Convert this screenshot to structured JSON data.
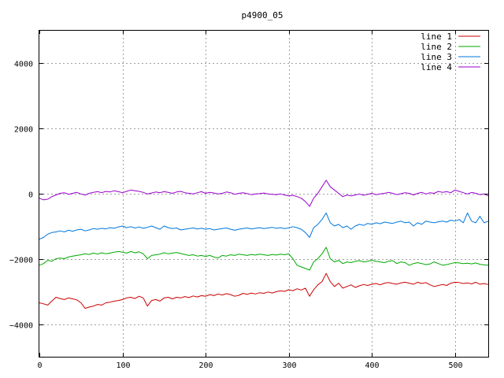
{
  "chart_data": {
    "type": "line",
    "title": "p4900_05",
    "xlabel": "",
    "ylabel": "",
    "xlim": [
      0,
      540
    ],
    "ylim": [
      -5000,
      5000
    ],
    "x_ticks": [
      0,
      100,
      200,
      300,
      400,
      500
    ],
    "y_ticks": [
      -4000,
      -2000,
      0,
      2000,
      4000
    ],
    "grid": true,
    "legend_position": "top-right",
    "series": [
      {
        "name": "line 1",
        "color": "#cc0000",
        "x": [
          0,
          5,
          10,
          15,
          20,
          25,
          30,
          35,
          40,
          45,
          50,
          55,
          60,
          65,
          70,
          75,
          80,
          85,
          90,
          95,
          100,
          105,
          110,
          115,
          120,
          125,
          130,
          135,
          140,
          145,
          150,
          155,
          160,
          165,
          170,
          175,
          180,
          185,
          190,
          195,
          200,
          205,
          210,
          215,
          220,
          225,
          230,
          235,
          240,
          245,
          250,
          255,
          260,
          265,
          270,
          275,
          280,
          285,
          290,
          295,
          300,
          305,
          310,
          315,
          320,
          325,
          330,
          335,
          340,
          345,
          350,
          355,
          360,
          365,
          370,
          375,
          380,
          385,
          390,
          395,
          400,
          405,
          410,
          415,
          420,
          425,
          430,
          435,
          440,
          445,
          450,
          455,
          460,
          465,
          470,
          475,
          480,
          485,
          490,
          495,
          500,
          505,
          510,
          515,
          520,
          525,
          530,
          535,
          540
        ],
        "y": [
          -3350,
          -3380,
          -3420,
          -3300,
          -3180,
          -3220,
          -3250,
          -3200,
          -3230,
          -3260,
          -3350,
          -3520,
          -3480,
          -3450,
          -3400,
          -3420,
          -3350,
          -3330,
          -3300,
          -3280,
          -3250,
          -3200,
          -3180,
          -3220,
          -3150,
          -3200,
          -3450,
          -3280,
          -3250,
          -3300,
          -3200,
          -3180,
          -3230,
          -3180,
          -3200,
          -3160,
          -3190,
          -3140,
          -3170,
          -3130,
          -3150,
          -3100,
          -3130,
          -3080,
          -3110,
          -3070,
          -3100,
          -3150,
          -3120,
          -3060,
          -3090,
          -3050,
          -3080,
          -3040,
          -3060,
          -3020,
          -3050,
          -3010,
          -2980,
          -3000,
          -2950,
          -2980,
          -2920,
          -2960,
          -2900,
          -3150,
          -2950,
          -2800,
          -2700,
          -2450,
          -2700,
          -2850,
          -2750,
          -2900,
          -2850,
          -2800,
          -2880,
          -2830,
          -2790,
          -2820,
          -2780,
          -2760,
          -2800,
          -2750,
          -2730,
          -2760,
          -2780,
          -2740,
          -2720,
          -2750,
          -2780,
          -2720,
          -2760,
          -2730,
          -2800,
          -2850,
          -2820,
          -2790,
          -2820,
          -2750,
          -2720,
          -2730,
          -2760,
          -2740,
          -2770,
          -2720,
          -2780,
          -2760,
          -2790
        ]
      },
      {
        "name": "line 2",
        "color": "#00aa00",
        "x": [
          0,
          5,
          10,
          15,
          20,
          25,
          30,
          35,
          40,
          45,
          50,
          55,
          60,
          65,
          70,
          75,
          80,
          85,
          90,
          95,
          100,
          105,
          110,
          115,
          120,
          125,
          130,
          135,
          140,
          145,
          150,
          155,
          160,
          165,
          170,
          175,
          180,
          185,
          190,
          195,
          200,
          205,
          210,
          215,
          220,
          225,
          230,
          235,
          240,
          245,
          250,
          255,
          260,
          265,
          270,
          275,
          280,
          285,
          290,
          295,
          300,
          305,
          310,
          315,
          320,
          325,
          330,
          335,
          340,
          345,
          350,
          355,
          360,
          365,
          370,
          375,
          380,
          385,
          390,
          395,
          400,
          405,
          410,
          415,
          420,
          425,
          430,
          435,
          440,
          445,
          450,
          455,
          460,
          465,
          470,
          475,
          480,
          485,
          490,
          495,
          500,
          505,
          510,
          515,
          520,
          525,
          530,
          535,
          540
        ],
        "y": [
          -2200,
          -2150,
          -2050,
          -2080,
          -2000,
          -1980,
          -2000,
          -1950,
          -1920,
          -1900,
          -1880,
          -1850,
          -1870,
          -1830,
          -1860,
          -1820,
          -1850,
          -1830,
          -1800,
          -1780,
          -1800,
          -1830,
          -1780,
          -1820,
          -1790,
          -1850,
          -2000,
          -1900,
          -1880,
          -1860,
          -1820,
          -1850,
          -1830,
          -1810,
          -1840,
          -1870,
          -1900,
          -1880,
          -1920,
          -1900,
          -1930,
          -1900,
          -1950,
          -1980,
          -1900,
          -1920,
          -1880,
          -1900,
          -1860,
          -1880,
          -1900,
          -1870,
          -1890,
          -1860,
          -1880,
          -1900,
          -1870,
          -1890,
          -1860,
          -1880,
          -1850,
          -2000,
          -2200,
          -2250,
          -2300,
          -2350,
          -2100,
          -2000,
          -1850,
          -1650,
          -2000,
          -2100,
          -2050,
          -2150,
          -2100,
          -2120,
          -2080,
          -2060,
          -2100,
          -2080,
          -2050,
          -2080,
          -2100,
          -2120,
          -2080,
          -2060,
          -2150,
          -2100,
          -2120,
          -2200,
          -2150,
          -2120,
          -2150,
          -2180,
          -2160,
          -2100,
          -2150,
          -2200,
          -2180,
          -2150,
          -2120,
          -2130,
          -2150,
          -2140,
          -2160,
          -2130,
          -2170,
          -2190,
          -2200
        ]
      },
      {
        "name": "line 3",
        "color": "#0077dd",
        "x": [
          0,
          5,
          10,
          15,
          20,
          25,
          30,
          35,
          40,
          45,
          50,
          55,
          60,
          65,
          70,
          75,
          80,
          85,
          90,
          95,
          100,
          105,
          110,
          115,
          120,
          125,
          130,
          135,
          140,
          145,
          150,
          155,
          160,
          165,
          170,
          175,
          180,
          185,
          190,
          195,
          200,
          205,
          210,
          215,
          220,
          225,
          230,
          235,
          240,
          245,
          250,
          255,
          260,
          265,
          270,
          275,
          280,
          285,
          290,
          295,
          300,
          305,
          310,
          315,
          320,
          325,
          330,
          335,
          340,
          345,
          350,
          355,
          360,
          365,
          370,
          375,
          380,
          385,
          390,
          395,
          400,
          405,
          410,
          415,
          420,
          425,
          430,
          435,
          440,
          445,
          450,
          455,
          460,
          465,
          470,
          475,
          480,
          485,
          490,
          495,
          500,
          505,
          510,
          515,
          520,
          525,
          530,
          535,
          540
        ],
        "y": [
          -1400,
          -1350,
          -1250,
          -1200,
          -1180,
          -1150,
          -1180,
          -1130,
          -1160,
          -1120,
          -1100,
          -1150,
          -1120,
          -1080,
          -1100,
          -1070,
          -1090,
          -1050,
          -1070,
          -1030,
          -1000,
          -1050,
          -1020,
          -1060,
          -1030,
          -1070,
          -1040,
          -1000,
          -1050,
          -1100,
          -1000,
          -1050,
          -1080,
          -1060,
          -1120,
          -1100,
          -1080,
          -1060,
          -1090,
          -1070,
          -1100,
          -1080,
          -1120,
          -1100,
          -1080,
          -1060,
          -1100,
          -1130,
          -1100,
          -1080,
          -1060,
          -1090,
          -1070,
          -1050,
          -1080,
          -1060,
          -1040,
          -1070,
          -1050,
          -1080,
          -1060,
          -1020,
          -1050,
          -1100,
          -1200,
          -1350,
          -1050,
          -950,
          -800,
          -600,
          -900,
          -1000,
          -950,
          -1050,
          -1000,
          -1100,
          -1000,
          -950,
          -980,
          -920,
          -950,
          -900,
          -930,
          -880,
          -900,
          -920,
          -880,
          -850,
          -900,
          -880,
          -1000,
          -900,
          -950,
          -850,
          -880,
          -900,
          -870,
          -850,
          -880,
          -820,
          -850,
          -800,
          -900,
          -600,
          -850,
          -900,
          -700,
          -900,
          -850
        ]
      },
      {
        "name": "line 4",
        "color": "#9900cc",
        "x": [
          0,
          5,
          10,
          15,
          20,
          25,
          30,
          35,
          40,
          45,
          50,
          55,
          60,
          65,
          70,
          75,
          80,
          85,
          90,
          95,
          100,
          105,
          110,
          115,
          120,
          125,
          130,
          135,
          140,
          145,
          150,
          155,
          160,
          165,
          170,
          175,
          180,
          185,
          190,
          195,
          200,
          205,
          210,
          215,
          220,
          225,
          230,
          235,
          240,
          245,
          250,
          255,
          260,
          265,
          270,
          275,
          280,
          285,
          290,
          295,
          300,
          305,
          310,
          315,
          320,
          325,
          330,
          335,
          340,
          345,
          350,
          355,
          360,
          365,
          370,
          375,
          380,
          385,
          390,
          395,
          400,
          405,
          410,
          415,
          420,
          425,
          430,
          435,
          440,
          445,
          450,
          455,
          460,
          465,
          470,
          475,
          480,
          485,
          490,
          495,
          500,
          505,
          510,
          515,
          520,
          525,
          530,
          535,
          540
        ],
        "y": [
          -150,
          -200,
          -180,
          -100,
          -50,
          0,
          20,
          -30,
          0,
          30,
          -20,
          -50,
          0,
          30,
          50,
          20,
          60,
          40,
          80,
          50,
          20,
          60,
          100,
          80,
          60,
          30,
          -20,
          10,
          40,
          20,
          50,
          30,
          0,
          40,
          60,
          20,
          0,
          -20,
          20,
          50,
          0,
          30,
          10,
          -20,
          0,
          40,
          20,
          -30,
          0,
          20,
          -10,
          -40,
          -20,
          -10,
          10,
          -20,
          -30,
          -40,
          -20,
          -50,
          -80,
          -60,
          -100,
          -150,
          -250,
          -400,
          -150,
          0,
          200,
          400,
          200,
          100,
          0,
          -100,
          -50,
          -80,
          -50,
          -20,
          -60,
          -30,
          0,
          -40,
          -20,
          0,
          30,
          0,
          -40,
          -10,
          20,
          0,
          -50,
          0,
          30,
          -20,
          20,
          0,
          60,
          30,
          50,
          20,
          100,
          60,
          20,
          -20,
          30,
          0,
          -40,
          -20,
          -80
        ]
      }
    ]
  }
}
